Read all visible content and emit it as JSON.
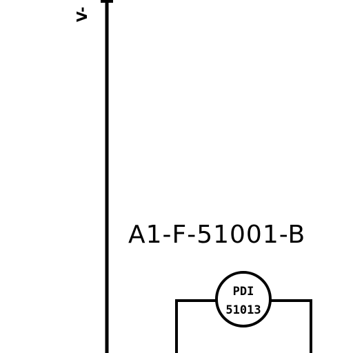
{
  "diagram": {
    "line_id": "A1-F-51001-B",
    "vertical_line_tag": "V-",
    "instrument": {
      "function": "PDI",
      "number": "51013"
    }
  }
}
